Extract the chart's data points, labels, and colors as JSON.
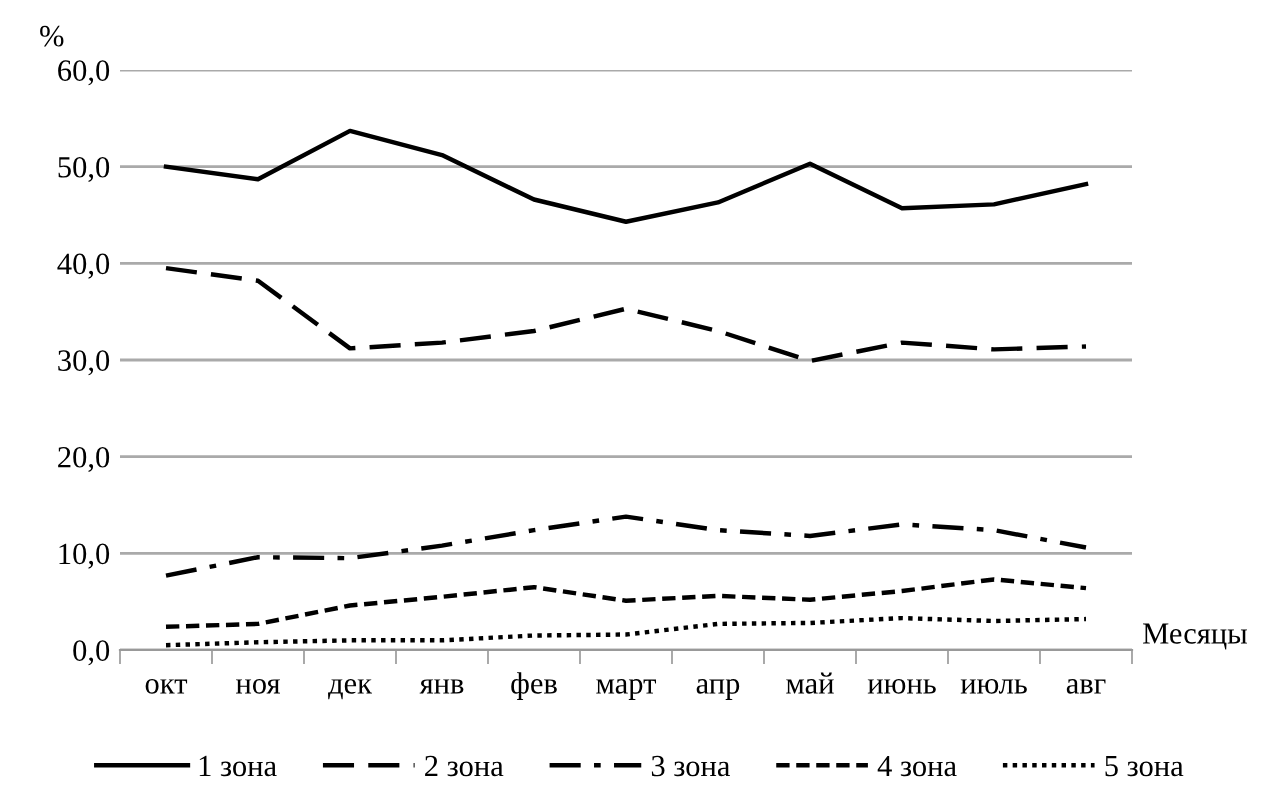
{
  "chart_data": {
    "type": "line",
    "ylabel": "%",
    "xlabel": "Месяцы",
    "categories": [
      "окт",
      "ноя",
      "дек",
      "янв",
      "фев",
      "март",
      "апр",
      "май",
      "июнь",
      "июль",
      "авг"
    ],
    "ylim": [
      0,
      60
    ],
    "yticks": [
      {
        "value": 0,
        "label": "0,0"
      },
      {
        "value": 10,
        "label": "10,0"
      },
      {
        "value": 20,
        "label": "20,0"
      },
      {
        "value": 30,
        "label": "30,0"
      },
      {
        "value": 40,
        "label": "40,0"
      },
      {
        "value": 50,
        "label": "50,0"
      },
      {
        "value": 60,
        "label": "60,0"
      }
    ],
    "grid": "y",
    "legend": "bottom",
    "marker": "none",
    "series": [
      {
        "name": "1 зона",
        "color": "#000000",
        "line_style": "solid",
        "values": [
          50.0,
          48.7,
          53.7,
          51.2,
          46.6,
          44.3,
          46.3,
          50.3,
          45.7,
          46.1,
          48.2
        ]
      },
      {
        "name": "2 зона",
        "color": "#000000",
        "line_style": "longdash",
        "values": [
          39.5,
          38.2,
          31.2,
          31.8,
          33.0,
          35.3,
          33.0,
          29.9,
          31.8,
          31.1,
          31.4
        ]
      },
      {
        "name": "3 зона",
        "color": "#000000",
        "line_style": "dashdot",
        "values": [
          7.7,
          9.6,
          9.5,
          10.8,
          12.4,
          13.8,
          12.4,
          11.8,
          13.0,
          12.4,
          10.6
        ]
      },
      {
        "name": "4 зона",
        "color": "#000000",
        "line_style": "dashed",
        "values": [
          2.4,
          2.7,
          4.6,
          5.5,
          6.5,
          5.1,
          5.6,
          5.2,
          6.1,
          7.3,
          6.4
        ]
      },
      {
        "name": "5 зона",
        "color": "#000000",
        "line_style": "dotted",
        "values": [
          0.5,
          0.8,
          1.0,
          1.0,
          1.5,
          1.6,
          2.7,
          2.8,
          3.3,
          3.0,
          3.2
        ]
      }
    ]
  }
}
